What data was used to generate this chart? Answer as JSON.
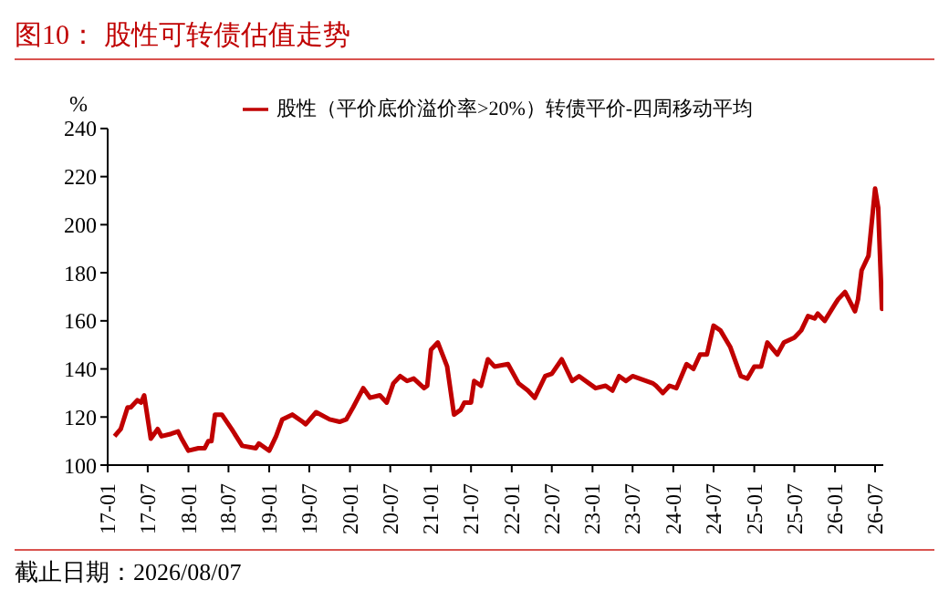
{
  "chart_data": {
    "type": "line",
    "title": "图10：  股性可转债估值走势",
    "ylabel": "%",
    "annotations": [
      "截止日期：2026/08/07"
    ],
    "legend": "top",
    "grid": false,
    "marker": "none",
    "line_style": "solid",
    "xlim": [
      "2017-01-01",
      "2026-08-07"
    ],
    "ylim": [
      100,
      240
    ],
    "yticks": [
      100,
      120,
      140,
      160,
      180,
      200,
      220,
      240
    ],
    "xticks": [
      {
        "value": "2017-01",
        "label": "17-01"
      },
      {
        "value": "2017-07",
        "label": "17-07"
      },
      {
        "value": "2018-01",
        "label": "18-01"
      },
      {
        "value": "2018-07",
        "label": "18-07"
      },
      {
        "value": "2019-01",
        "label": "19-01"
      },
      {
        "value": "2019-07",
        "label": "19-07"
      },
      {
        "value": "2020-01",
        "label": "20-01"
      },
      {
        "value": "2020-07",
        "label": "20-07"
      },
      {
        "value": "2021-01",
        "label": "21-01"
      },
      {
        "value": "2021-07",
        "label": "21-07"
      },
      {
        "value": "2022-01",
        "label": "22-01"
      },
      {
        "value": "2022-07",
        "label": "22-07"
      },
      {
        "value": "2023-01",
        "label": "23-01"
      },
      {
        "value": "2023-07",
        "label": "23-07"
      },
      {
        "value": "2024-01",
        "label": "24-01"
      },
      {
        "value": "2024-07",
        "label": "24-07"
      },
      {
        "value": "2025-01",
        "label": "25-01"
      },
      {
        "value": "2025-07",
        "label": "25-07"
      },
      {
        "value": "2026-01",
        "label": "26-01"
      },
      {
        "value": "2026-07",
        "label": "26-07"
      }
    ],
    "x": [
      "2017-02-01",
      "2017-03-01",
      "2017-04-01",
      "2017-04-15",
      "2017-05-15",
      "2017-06-01",
      "2017-06-15",
      "2017-07-15",
      "2017-08-15",
      "2017-09-01",
      "2017-10-15",
      "2017-11-15",
      "2017-12-01",
      "2018-01-01",
      "2018-02-15",
      "2018-03-15",
      "2018-04-01",
      "2018-04-15",
      "2018-05-01",
      "2018-06-01",
      "2018-07-15",
      "2018-09-01",
      "2018-11-01",
      "2018-11-15",
      "2019-01-01",
      "2019-02-01",
      "2019-03-01",
      "2019-04-15",
      "2019-06-01",
      "2019-06-15",
      "2019-08-01",
      "2019-10-01",
      "2019-11-15",
      "2019-12-15",
      "2020-01-15",
      "2020-03-01",
      "2020-04-01",
      "2020-05-15",
      "2020-06-15",
      "2020-07-15",
      "2020-08-15",
      "2020-09-15",
      "2020-10-15",
      "2020-12-01",
      "2020-12-15",
      "2021-01-01",
      "2021-02-01",
      "2021-03-15",
      "2021-04-15",
      "2021-05-15",
      "2021-06-01",
      "2021-07-01",
      "2021-07-15",
      "2021-08-15",
      "2021-09-15",
      "2021-10-15",
      "2021-12-15",
      "2022-02-01",
      "2022-03-15",
      "2022-04-15",
      "2022-06-01",
      "2022-07-01",
      "2022-08-15",
      "2022-10-01",
      "2022-11-01",
      "2023-01-15",
      "2023-03-01",
      "2023-04-01",
      "2023-05-01",
      "2023-06-01",
      "2023-07-01",
      "2023-10-01",
      "2023-10-15",
      "2023-11-15",
      "2023-12-15",
      "2024-01-15",
      "2024-03-01",
      "2024-04-01",
      "2024-05-01",
      "2024-06-01",
      "2024-07-01",
      "2024-08-01",
      "2024-09-15",
      "2024-11-01",
      "2024-12-01",
      "2025-01-01",
      "2025-02-01",
      "2025-03-01",
      "2025-04-15",
      "2025-05-15",
      "2025-07-01",
      "2025-08-01",
      "2025-09-01",
      "2025-10-01",
      "2025-10-15",
      "2025-11-15",
      "2026-01-01",
      "2026-01-15",
      "2026-02-15",
      "2026-04-01",
      "2026-04-15",
      "2026-05-01",
      "2026-06-01",
      "2026-07-01",
      "2026-07-15",
      "2026-08-01",
      "2026-08-07"
    ],
    "series": [
      {
        "name": "股性（平价底价溢价率>20%）转债平价-四周移动平均",
        "color": "#c00000",
        "values": [
          112,
          115,
          124,
          124,
          127,
          126,
          129,
          111,
          115,
          112,
          113,
          114,
          111,
          106,
          107,
          107,
          110,
          110,
          121,
          121,
          115,
          108,
          107,
          109,
          106,
          112,
          119,
          121,
          118,
          117,
          122,
          119,
          118,
          119,
          124,
          132,
          128,
          129,
          126,
          134,
          137,
          135,
          136,
          132,
          133,
          148,
          151,
          141,
          121,
          123,
          126,
          126,
          135,
          133,
          144,
          141,
          142,
          134,
          131,
          128,
          137,
          138,
          144,
          135,
          137,
          132,
          133,
          131,
          137,
          135,
          137,
          134,
          133,
          130,
          133,
          132,
          142,
          140,
          146,
          146,
          158,
          156,
          149,
          137,
          136,
          141,
          141,
          151,
          146,
          151,
          153,
          156,
          162,
          161,
          163,
          160,
          167,
          169,
          172,
          164,
          169,
          181,
          187,
          215,
          207,
          165,
          172
        ]
      }
    ]
  }
}
